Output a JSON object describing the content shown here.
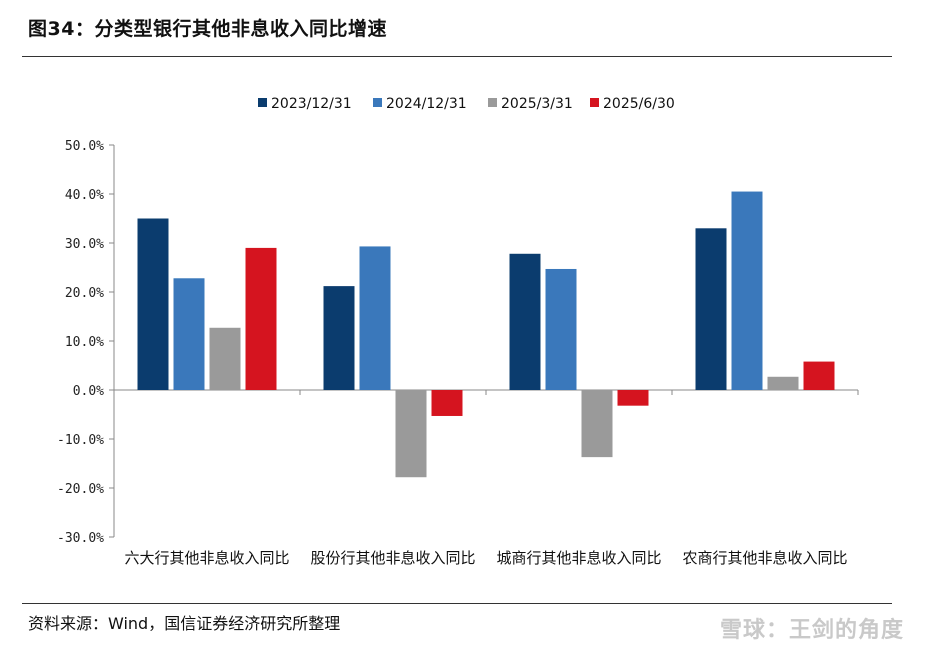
{
  "title": "图34：分类型银行其他非息收入同比增速",
  "source": "资料来源：Wind，国信证券经济研究所整理",
  "watermark": "雪球：王剑的角度",
  "chart_data": {
    "type": "bar",
    "categories": [
      "六大行其他非息收入同比",
      "股份行其他非息收入同比",
      "城商行其他非息收入同比",
      "农商行其他非息收入同比"
    ],
    "series": [
      {
        "name": "2023/12/31",
        "color": "#0b3c6e",
        "values": [
          35.0,
          21.2,
          27.8,
          33.0
        ]
      },
      {
        "name": "2024/12/31",
        "color": "#3a78bb",
        "values": [
          22.8,
          29.3,
          24.7,
          40.5
        ]
      },
      {
        "name": "2025/3/31",
        "color": "#9a9a9a",
        "values": [
          12.7,
          -17.8,
          -13.7,
          2.7
        ]
      },
      {
        "name": "2025/6/30",
        "color": "#d5141f",
        "values": [
          29.0,
          -5.3,
          -3.2,
          5.8
        ]
      }
    ],
    "ylim": [
      -30,
      50
    ],
    "yticks": [
      50,
      40,
      30,
      20,
      10,
      0,
      -10,
      -20,
      -30
    ],
    "ytick_labels": [
      "50.0%",
      "40.0%",
      "30.0%",
      "20.0%",
      "10.0%",
      "0.0%",
      "-10.0%",
      "-20.0%",
      "-30.0%"
    ],
    "legend_position": "top-center",
    "xlabel": "",
    "ylabel": ""
  }
}
